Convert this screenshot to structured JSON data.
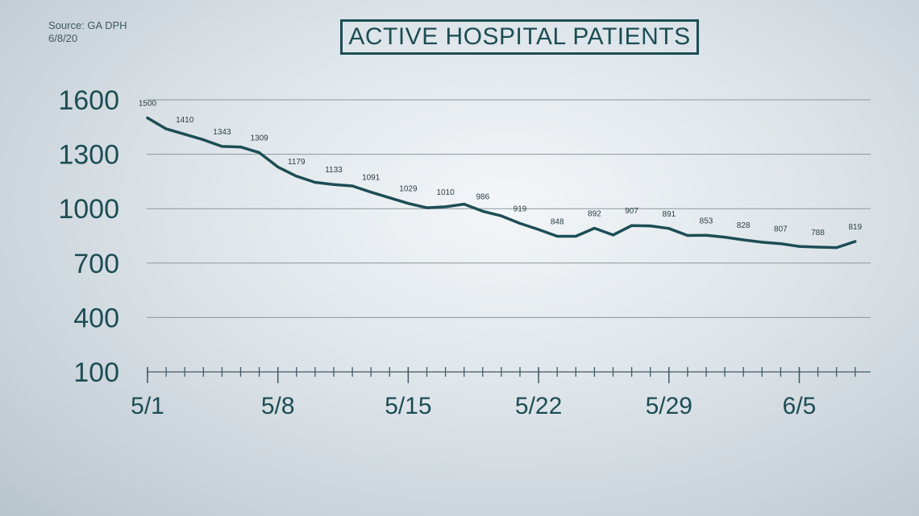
{
  "source": {
    "line1": "Source: GA DPH",
    "line2": "6/8/20"
  },
  "colors": {
    "line": "#1d4d55",
    "text": "#1d4d55",
    "grid": "#8a979e"
  },
  "chart_data": {
    "type": "line",
    "title": "ACTIVE HOSPITAL PATIENTS",
    "xlabel": "",
    "ylabel": "",
    "grid": true,
    "ylim": [
      100,
      1600
    ],
    "yticks": [
      100,
      400,
      700,
      1000,
      1300,
      1600
    ],
    "x_start": "5/1",
    "xtick_labels": [
      {
        "label": "5/1",
        "index": 0
      },
      {
        "label": "5/8",
        "index": 7
      },
      {
        "label": "5/15",
        "index": 14
      },
      {
        "label": "5/22",
        "index": 21
      },
      {
        "label": "5/29",
        "index": 28
      },
      {
        "label": "6/5",
        "index": 35
      }
    ],
    "dates": [
      "5/1",
      "5/2",
      "5/3",
      "5/4",
      "5/5",
      "5/6",
      "5/7",
      "5/8",
      "5/9",
      "5/10",
      "5/11",
      "5/12",
      "5/13",
      "5/14",
      "5/15",
      "5/16",
      "5/17",
      "5/18",
      "5/19",
      "5/20",
      "5/21",
      "5/22",
      "5/23",
      "5/24",
      "5/25",
      "5/26",
      "5/27",
      "5/28",
      "5/29",
      "5/30",
      "5/31",
      "6/1",
      "6/2",
      "6/3",
      "6/4",
      "6/5",
      "6/6",
      "6/7",
      "6/8"
    ],
    "values": [
      1500,
      1440,
      1410,
      1380,
      1343,
      1340,
      1309,
      1230,
      1179,
      1145,
      1133,
      1125,
      1091,
      1060,
      1029,
      1005,
      1010,
      1025,
      986,
      960,
      919,
      885,
      848,
      848,
      892,
      855,
      907,
      905,
      891,
      852,
      853,
      843,
      828,
      815,
      807,
      792,
      788,
      785,
      819
    ],
    "labels": [
      {
        "index": 0,
        "text": "1500"
      },
      {
        "index": 2,
        "text": "1410"
      },
      {
        "index": 4,
        "text": "1343"
      },
      {
        "index": 6,
        "text": "1309"
      },
      {
        "index": 8,
        "text": "1179"
      },
      {
        "index": 10,
        "text": "1133"
      },
      {
        "index": 12,
        "text": "1091"
      },
      {
        "index": 14,
        "text": "1029"
      },
      {
        "index": 16,
        "text": "1010"
      },
      {
        "index": 18,
        "text": "986"
      },
      {
        "index": 20,
        "text": "919"
      },
      {
        "index": 22,
        "text": "848"
      },
      {
        "index": 24,
        "text": "892"
      },
      {
        "index": 26,
        "text": "907"
      },
      {
        "index": 28,
        "text": "891"
      },
      {
        "index": 30,
        "text": "853"
      },
      {
        "index": 32,
        "text": "828"
      },
      {
        "index": 34,
        "text": "807"
      },
      {
        "index": 36,
        "text": "788"
      },
      {
        "index": 38,
        "text": "819"
      }
    ]
  }
}
